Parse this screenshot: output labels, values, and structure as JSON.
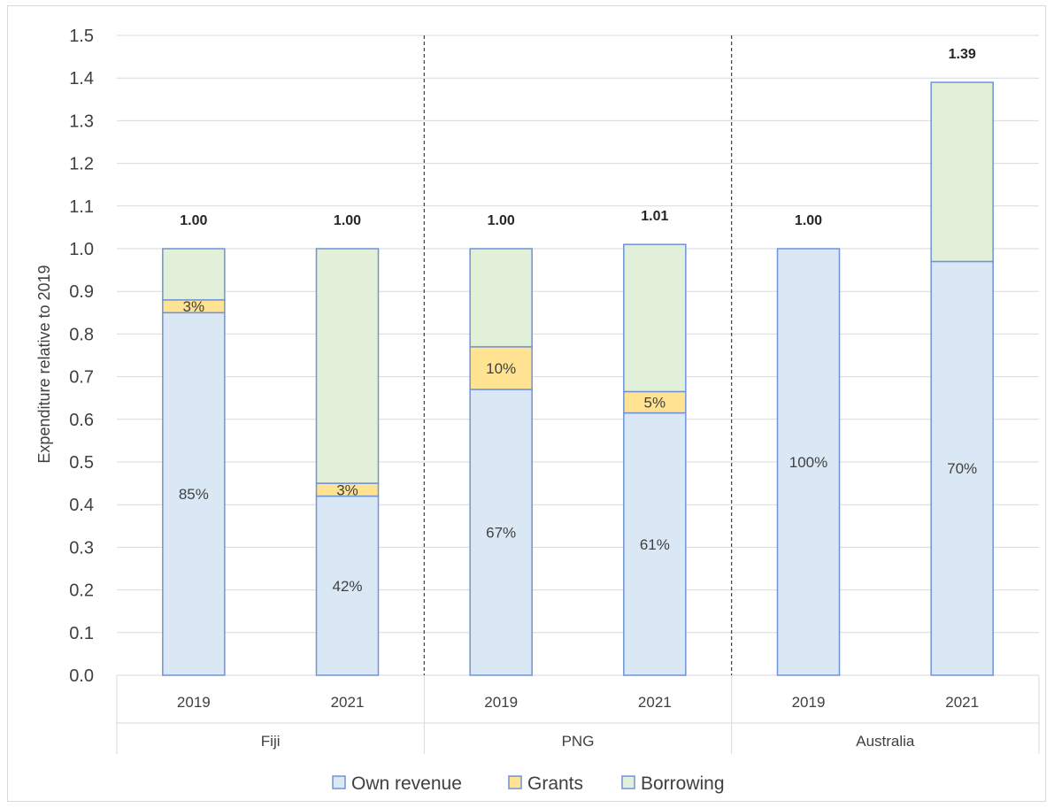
{
  "chart_data": {
    "type": "bar",
    "stacked": true,
    "ylabel": "Expenditure relative to 2019",
    "ylim": [
      0,
      1.5
    ],
    "yticks": [
      "0.0",
      "0.1",
      "0.2",
      "0.3",
      "0.4",
      "0.5",
      "0.6",
      "0.7",
      "0.8",
      "0.9",
      "1.0",
      "1.1",
      "1.2",
      "1.3",
      "1.4",
      "1.5"
    ],
    "grid": true,
    "legend_position": "bottom",
    "groups": [
      {
        "name": "Fiji",
        "bars": [
          {
            "year": "2019",
            "total_label": "1.00",
            "segments": [
              {
                "series": "Own revenue",
                "value": 0.85,
                "label": "85%"
              },
              {
                "series": "Grants",
                "value": 0.03,
                "label": "3%"
              },
              {
                "series": "Borrowing",
                "value": 0.12,
                "label": ""
              }
            ]
          },
          {
            "year": "2021",
            "total_label": "1.00",
            "segments": [
              {
                "series": "Own revenue",
                "value": 0.42,
                "label": "42%"
              },
              {
                "series": "Grants",
                "value": 0.03,
                "label": "3%"
              },
              {
                "series": "Borrowing",
                "value": 0.55,
                "label": ""
              }
            ]
          }
        ]
      },
      {
        "name": "PNG",
        "bars": [
          {
            "year": "2019",
            "total_label": "1.00",
            "segments": [
              {
                "series": "Own revenue",
                "value": 0.67,
                "label": "67%"
              },
              {
                "series": "Grants",
                "value": 0.1,
                "label": "10%"
              },
              {
                "series": "Borrowing",
                "value": 0.23,
                "label": ""
              }
            ]
          },
          {
            "year": "2021",
            "total_label": "1.01",
            "segments": [
              {
                "series": "Own revenue",
                "value": 0.615,
                "label": "61%"
              },
              {
                "series": "Grants",
                "value": 0.05,
                "label": "5%"
              },
              {
                "series": "Borrowing",
                "value": 0.345,
                "label": ""
              }
            ]
          }
        ]
      },
      {
        "name": "Australia",
        "bars": [
          {
            "year": "2019",
            "total_label": "1.00",
            "segments": [
              {
                "series": "Own revenue",
                "value": 1.0,
                "label": "100%"
              },
              {
                "series": "Grants",
                "value": 0,
                "label": ""
              },
              {
                "series": "Borrowing",
                "value": 0,
                "label": ""
              }
            ]
          },
          {
            "year": "2021",
            "total_label": "1.39",
            "segments": [
              {
                "series": "Own revenue",
                "value": 0.97,
                "label": "70%"
              },
              {
                "series": "Grants",
                "value": 0,
                "label": ""
              },
              {
                "series": "Borrowing",
                "value": 0.42,
                "label": ""
              }
            ]
          }
        ]
      }
    ],
    "series": [
      {
        "name": "Own revenue",
        "color": "#dae8f5",
        "border": "#6f93d6"
      },
      {
        "name": "Grants",
        "color": "#ffe393",
        "border": "#6f93d6"
      },
      {
        "name": "Borrowing",
        "color": "#e2efd9",
        "border": "#6f93d6"
      }
    ]
  }
}
